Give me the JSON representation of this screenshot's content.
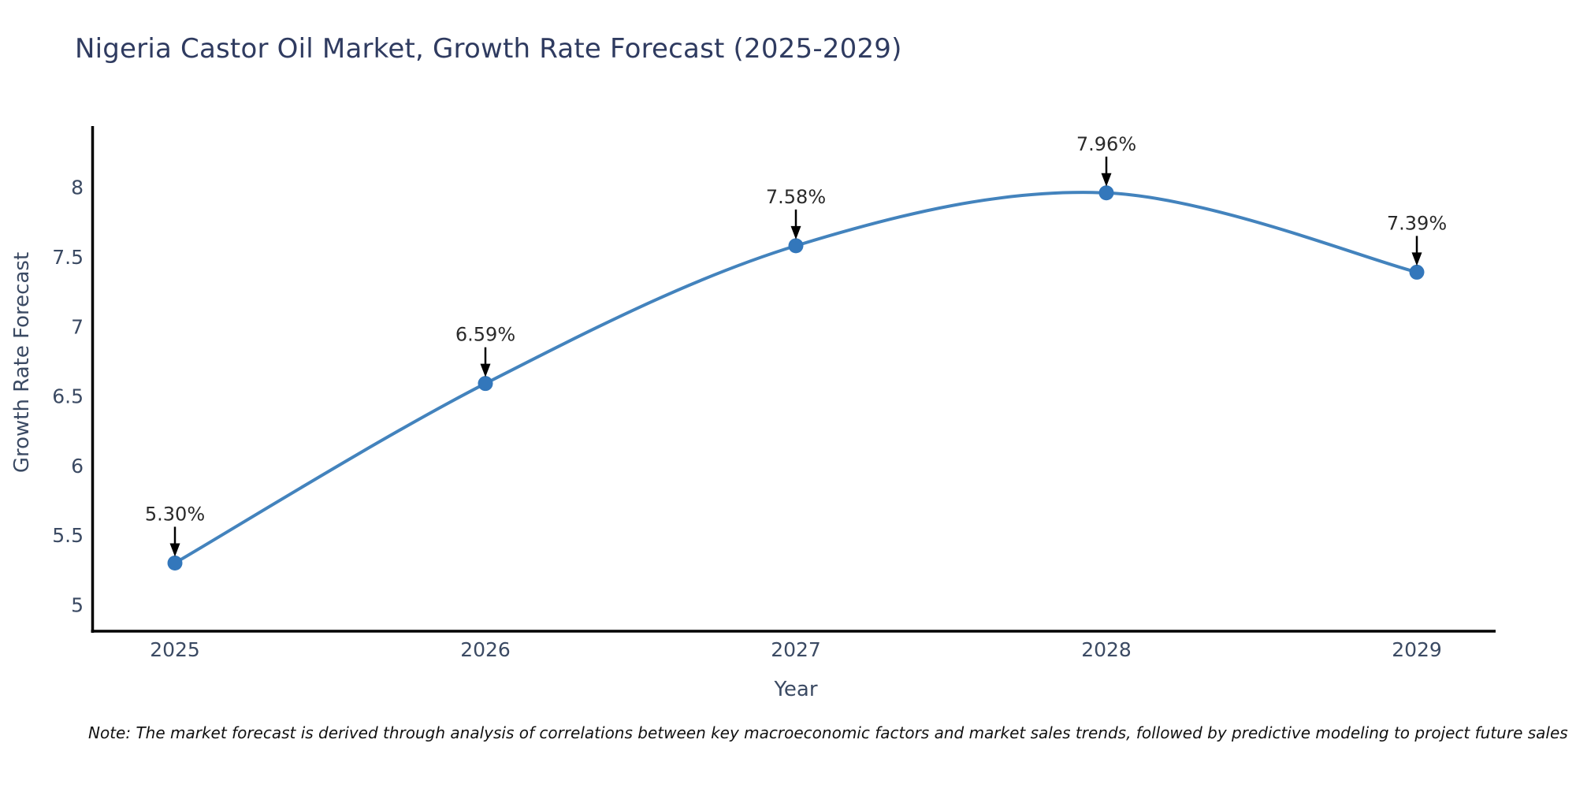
{
  "chart_data": {
    "type": "line",
    "title": "Nigeria Castor Oil Market, Growth Rate Forecast (2025-2029)",
    "xlabel": "Year",
    "ylabel": "Growth Rate Forecast",
    "x": [
      2025,
      2026,
      2027,
      2028,
      2029
    ],
    "series": [
      {
        "name": "Growth Rate Forecast",
        "values": [
          5.3,
          6.59,
          7.58,
          7.96,
          7.39
        ],
        "point_labels": [
          "5.30%",
          "6.59%",
          "7.58%",
          "7.96%",
          "7.39%"
        ]
      }
    ],
    "yticks": [
      5,
      5.5,
      6,
      6.5,
      7,
      7.5,
      8
    ],
    "ytick_labels": [
      "5",
      "5.5",
      "6",
      "6.5",
      "7",
      "7.5",
      "8"
    ],
    "xtick_labels": [
      "2025",
      "2026",
      "2027",
      "2028",
      "2029"
    ],
    "ylim": [
      4.81,
      8.44
    ],
    "line_shape": "spline",
    "grid": false,
    "legend": "none",
    "annotations_have_arrows": true,
    "colors": {
      "line": "#4383bd",
      "marker": "#3377bb",
      "annotation_text": "#2a2a2a",
      "arrow": "#000000",
      "axis_line": "#000000",
      "tick_label": "#3b4a63",
      "axis_title": "#3b4a63",
      "title": "#2f3b60",
      "note": "#111111"
    }
  },
  "note": "Note: The market forecast is derived through analysis of correlations between key macroeconomic factors and market sales trends, followed by predictive modeling to project future sales"
}
